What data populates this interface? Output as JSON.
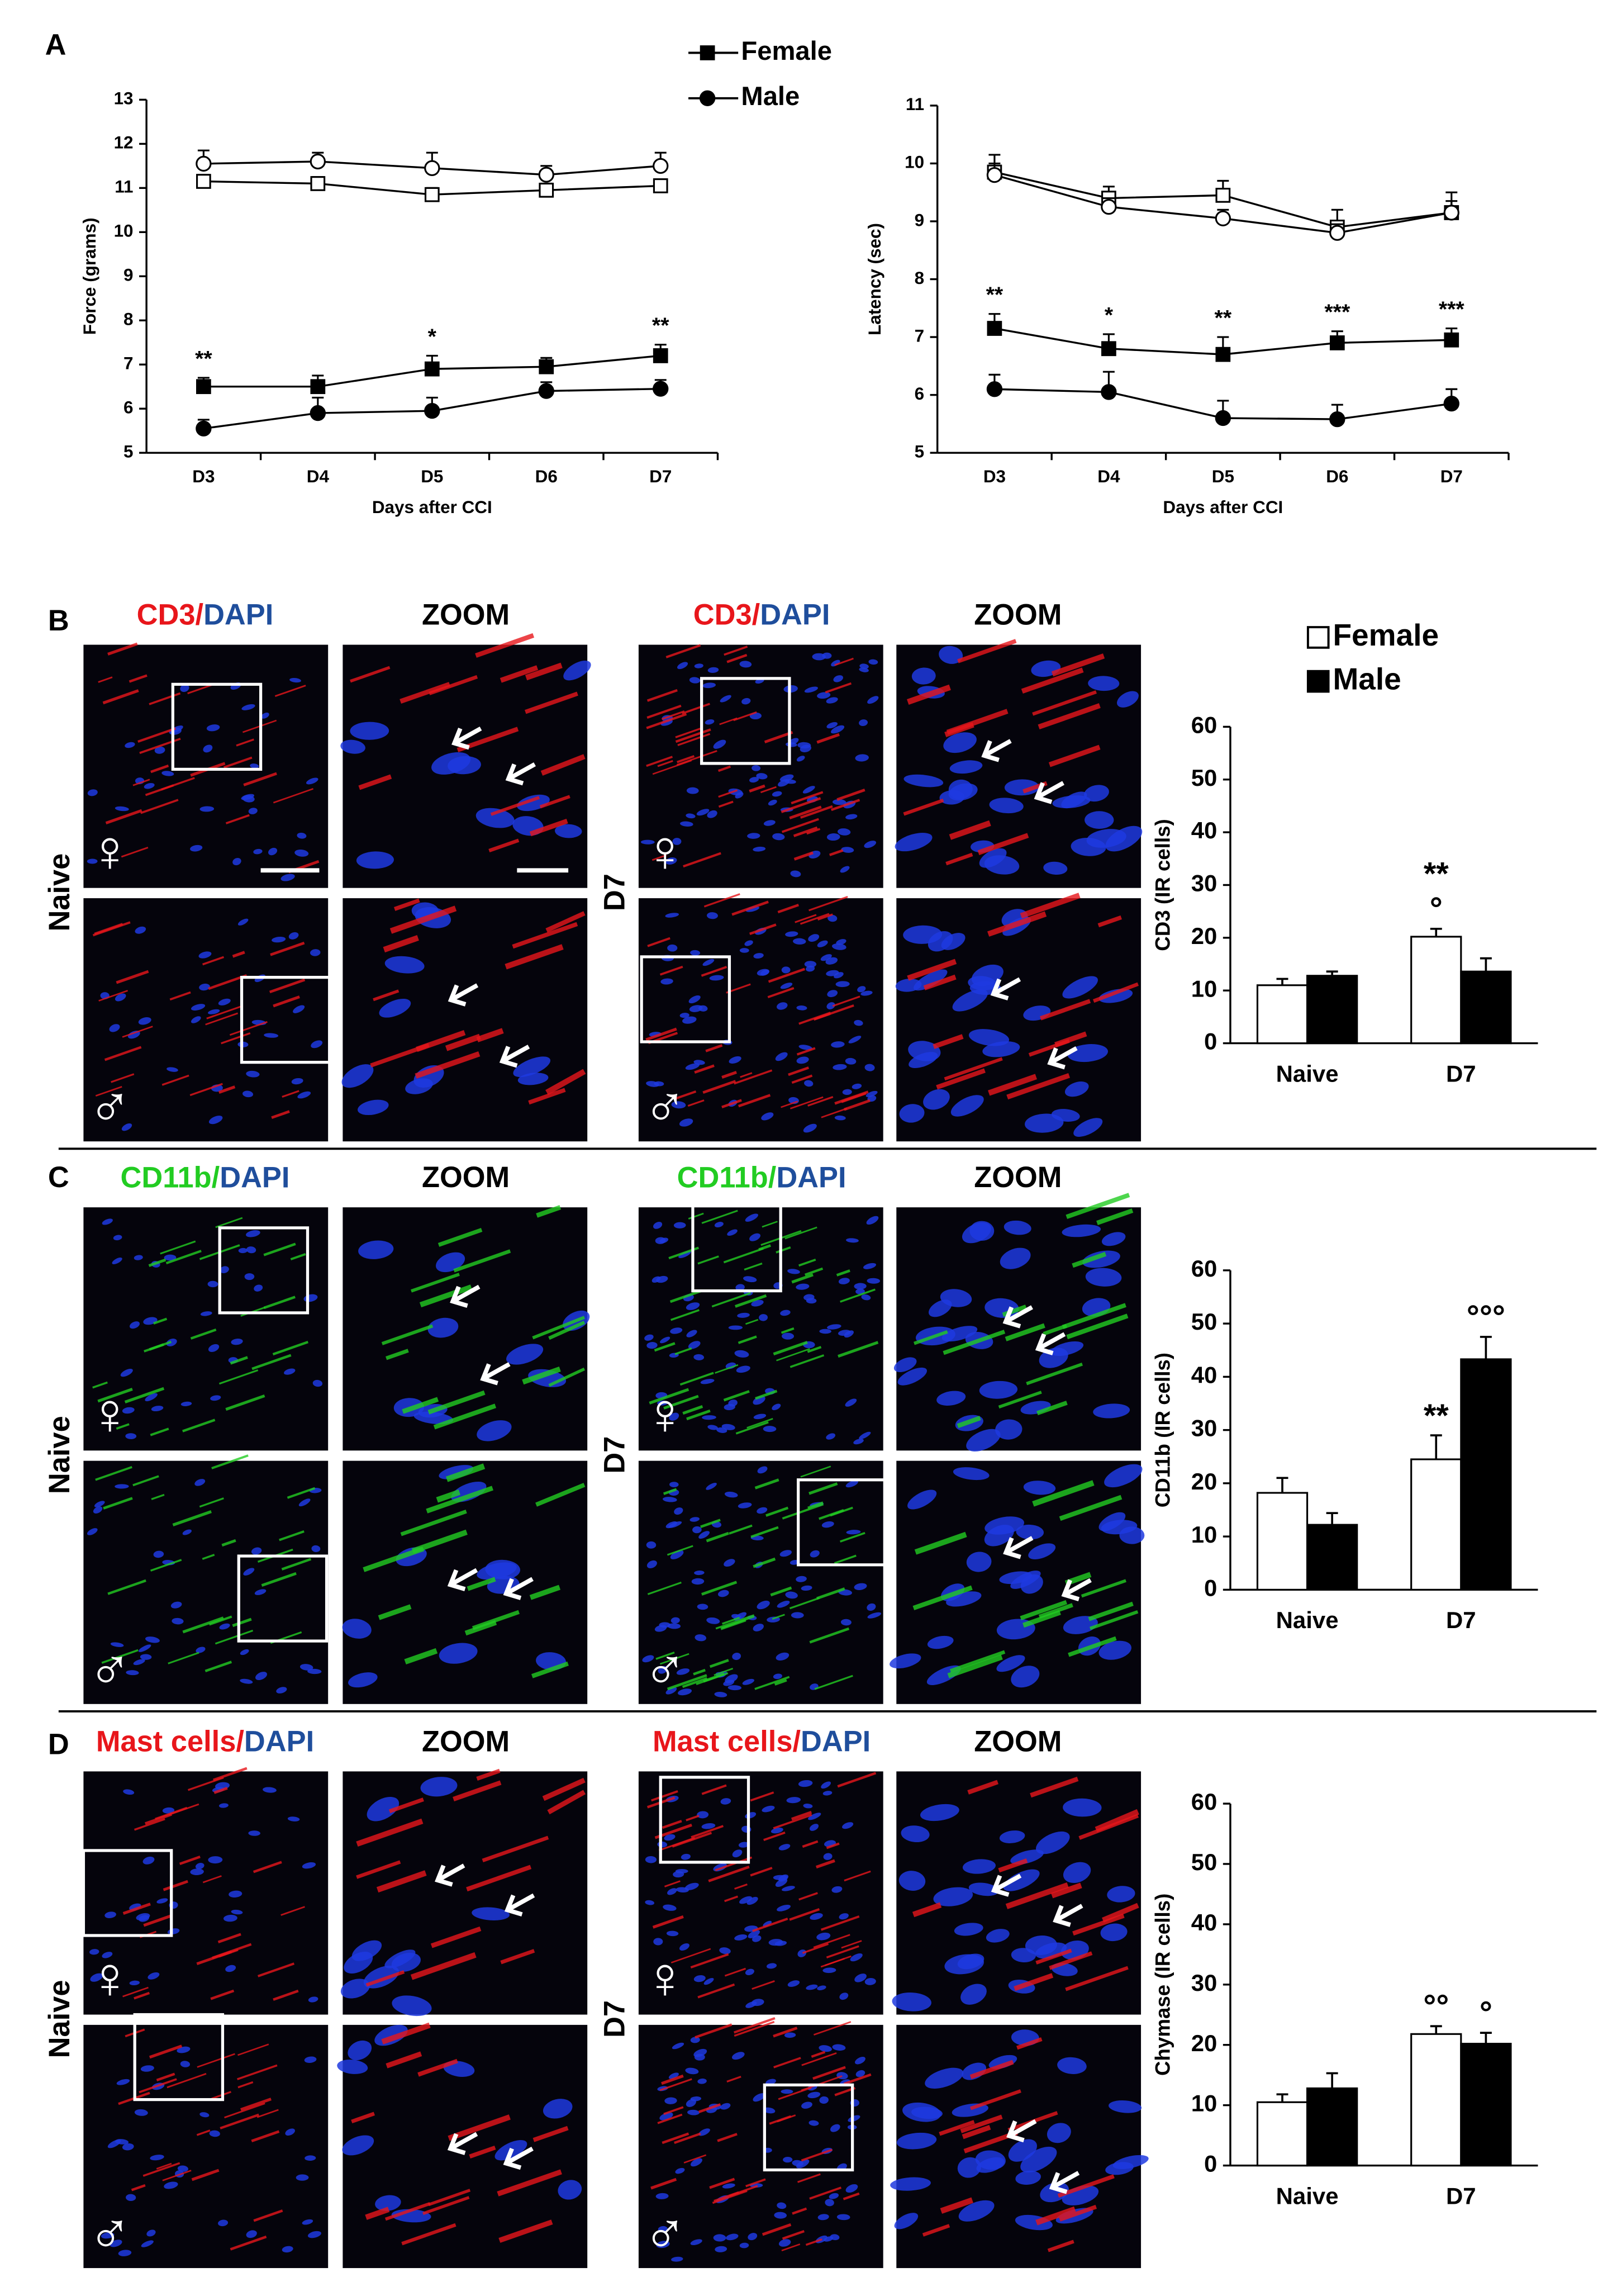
{
  "figure": {
    "panel_letters": [
      "A",
      "B",
      "C",
      "D"
    ],
    "image_rows": [
      {
        "stain": "CD3/",
        "counterstain": "DAPI",
        "stain_color": "#e8161b",
        "counterstain_color": "#1f4e9c",
        "zoom": "ZOOM",
        "conditions": [
          "Naive",
          "D7"
        ],
        "sexes": [
          "♀",
          "♂"
        ]
      },
      {
        "stain": "CD11b/",
        "counterstain": "DAPI",
        "stain_color": "#22cc22",
        "counterstain_color": "#1f4e9c",
        "zoom": "ZOOM",
        "conditions": [
          "Naive",
          "D7"
        ],
        "sexes": [
          "♀",
          "♂"
        ]
      },
      {
        "stain": "Mast cells/",
        "counterstain": "DAPI",
        "stain_color": "#e8161b",
        "counterstain_color": "#1f4e9c",
        "zoom": "ZOOM",
        "conditions": [
          "Naive",
          "D7"
        ],
        "sexes": [
          "♀",
          "♂"
        ]
      }
    ]
  },
  "chart_data": [
    {
      "type": "line",
      "categories": [
        "D3",
        "D4",
        "D5",
        "D6",
        "D7"
      ],
      "xlabel": "Days after CCI",
      "ylabel": "Force (grams)",
      "ylim": [
        5,
        13
      ],
      "yticks": [
        5,
        6,
        7,
        8,
        9,
        10,
        11,
        12,
        13
      ],
      "legend": "top-center",
      "series": [
        {
          "color": "#000000",
          "marker": "square",
          "filled": false,
          "values": [
            11.15,
            11.1,
            10.85,
            10.95,
            11.05
          ],
          "errors": [
            0.15,
            0.15,
            0.15,
            0.15,
            0.15
          ]
        },
        {
          "color": "#000000",
          "marker": "circle",
          "filled": false,
          "values": [
            11.55,
            11.6,
            11.45,
            11.3,
            11.5
          ],
          "errors": [
            0.3,
            0.2,
            0.35,
            0.2,
            0.3
          ]
        },
        {
          "name": "Female",
          "color": "#000000",
          "marker": "square",
          "filled": true,
          "values": [
            6.5,
            6.5,
            6.9,
            6.95,
            7.2
          ],
          "errors": [
            0.2,
            0.25,
            0.3,
            0.2,
            0.25
          ]
        },
        {
          "name": "Male",
          "color": "#000000",
          "marker": "circle",
          "filled": true,
          "values": [
            5.55,
            5.9,
            5.95,
            6.4,
            6.45
          ],
          "errors": [
            0.2,
            0.35,
            0.3,
            0.2,
            0.2
          ]
        }
      ],
      "annotations": [
        {
          "text": "**",
          "category": 0,
          "series": 2
        },
        {
          "text": "*",
          "category": 2,
          "series": 2
        },
        {
          "text": "**",
          "category": 4,
          "series": 2
        }
      ]
    },
    {
      "type": "line",
      "categories": [
        "D3",
        "D4",
        "D5",
        "D6",
        "D7"
      ],
      "xlabel": "Days after CCI",
      "ylabel": "Latency (sec)",
      "ylim": [
        5,
        11
      ],
      "yticks": [
        5,
        6,
        7,
        8,
        9,
        10,
        11
      ],
      "series": [
        {
          "color": "#000000",
          "marker": "square",
          "filled": false,
          "values": [
            9.85,
            9.4,
            9.45,
            8.9,
            9.15
          ],
          "errors": [
            0.3,
            0.2,
            0.25,
            0.3,
            0.35
          ]
        },
        {
          "color": "#000000",
          "marker": "circle",
          "filled": false,
          "values": [
            9.8,
            9.25,
            9.05,
            8.8,
            9.15
          ],
          "errors": [
            0.2,
            0.15,
            0.15,
            0.15,
            0.2
          ]
        },
        {
          "color": "#000000",
          "marker": "square",
          "filled": true,
          "values": [
            7.15,
            6.8,
            6.7,
            6.9,
            6.95
          ],
          "errors": [
            0.25,
            0.25,
            0.3,
            0.2,
            0.2
          ]
        },
        {
          "color": "#000000",
          "marker": "circle",
          "filled": true,
          "values": [
            6.1,
            6.05,
            5.6,
            5.58,
            5.85
          ],
          "errors": [
            0.25,
            0.35,
            0.3,
            0.25,
            0.25
          ]
        }
      ],
      "annotations": [
        {
          "text": "**",
          "category": 0,
          "series": 2
        },
        {
          "text": "*",
          "category": 1,
          "series": 2
        },
        {
          "text": "**",
          "category": 2,
          "series": 2
        },
        {
          "text": "***",
          "category": 3,
          "series": 2
        },
        {
          "text": "***",
          "category": 4,
          "series": 2
        }
      ]
    },
    {
      "type": "bar",
      "categories": [
        "Naive",
        "D7"
      ],
      "ylabel": "CD3 (IR cells)",
      "ylim": [
        0,
        60
      ],
      "yticks": [
        0,
        10,
        20,
        30,
        40,
        50,
        60
      ],
      "legend": "top-left",
      "series": [
        {
          "name": "Female",
          "color": "#ffffff",
          "values": [
            11,
            20.2
          ],
          "errors": [
            1.2,
            1.5
          ]
        },
        {
          "name": "Male",
          "color": "#000000",
          "values": [
            12.8,
            13.6
          ],
          "errors": [
            0.8,
            2.5
          ]
        }
      ],
      "annotations": [
        {
          "text": "°",
          "category": 1,
          "series": 0
        },
        {
          "text": "**",
          "category": 1,
          "series": 0
        }
      ]
    },
    {
      "type": "bar",
      "categories": [
        "Naive",
        "D7"
      ],
      "ylabel": "CD11b (IR cells)",
      "ylim": [
        0,
        60
      ],
      "yticks": [
        0,
        10,
        20,
        30,
        40,
        50,
        60
      ],
      "series": [
        {
          "color": "#ffffff",
          "values": [
            18.2,
            24.5
          ],
          "errors": [
            2.8,
            4.5
          ]
        },
        {
          "color": "#000000",
          "values": [
            12.2,
            43.3
          ],
          "errors": [
            2.2,
            4.2
          ]
        }
      ],
      "annotations": [
        {
          "text": "**",
          "category": 1,
          "series": 0
        },
        {
          "text": "°°°",
          "category": 1,
          "series": 1
        }
      ]
    },
    {
      "type": "bar",
      "categories": [
        "Naive",
        "D7"
      ],
      "ylabel": "Chymase (IR cells)",
      "ylim": [
        0,
        60
      ],
      "yticks": [
        0,
        10,
        20,
        30,
        40,
        50,
        60
      ],
      "series": [
        {
          "color": "#ffffff",
          "values": [
            10.5,
            21.8
          ],
          "errors": [
            1.3,
            1.3
          ]
        },
        {
          "color": "#000000",
          "values": [
            12.8,
            20.2
          ],
          "errors": [
            2.5,
            1.8
          ]
        }
      ],
      "annotations": [
        {
          "text": "°°",
          "category": 1,
          "series": 0
        },
        {
          "text": "°",
          "category": 1,
          "series": 1
        }
      ]
    }
  ]
}
